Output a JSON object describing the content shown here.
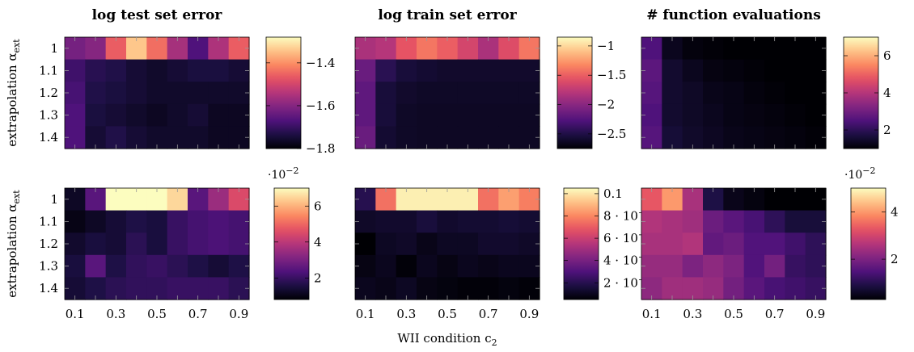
{
  "figure": {
    "xlabel": "WII condition c",
    "xlabel_sub": "2",
    "ylabel": "extrapolation α",
    "ylabel_sub": "ext"
  },
  "colormap": [
    "#000004",
    "#1c1044",
    "#4f127b",
    "#812581",
    "#b5367a",
    "#e55064",
    "#fb8761",
    "#fec287",
    "#fcfdbf"
  ],
  "chart_data": [
    {
      "type": "heatmap",
      "title": "log test set error",
      "x": [
        0.1,
        0.2,
        0.3,
        0.4,
        0.5,
        0.6,
        0.7,
        0.8,
        0.9
      ],
      "x_ticklabels": [
        "0.1",
        "0.3",
        "0.5",
        "0.7",
        "0.9"
      ],
      "y_ticklabels": [
        "1",
        "1.1",
        "1.2",
        "1.3",
        "1.4"
      ],
      "z": [
        [
          -1.62,
          -1.6,
          -1.46,
          -1.34,
          -1.44,
          -1.56,
          -1.67,
          -1.55,
          -1.46
        ],
        [
          -1.69,
          -1.72,
          -1.73,
          -1.75,
          -1.76,
          -1.75,
          -1.74,
          -1.74,
          -1.75
        ],
        [
          -1.68,
          -1.73,
          -1.74,
          -1.75,
          -1.76,
          -1.76,
          -1.76,
          -1.76,
          -1.76
        ],
        [
          -1.67,
          -1.74,
          -1.75,
          -1.76,
          -1.77,
          -1.76,
          -1.75,
          -1.77,
          -1.77
        ],
        [
          -1.67,
          -1.75,
          -1.73,
          -1.75,
          -1.76,
          -1.76,
          -1.76,
          -1.77,
          -1.77
        ]
      ],
      "colorbar": {
        "min": -1.8,
        "max": -1.28,
        "ticks": [
          -1.8,
          -1.6,
          -1.4
        ],
        "ticklabels": [
          "−1.8",
          "−1.6",
          "−1.4"
        ],
        "exponent": ""
      }
    },
    {
      "type": "heatmap",
      "title": "log train set error",
      "x": [
        0.1,
        0.2,
        0.3,
        0.4,
        0.5,
        0.6,
        0.7,
        0.8,
        0.9
      ],
      "x_ticklabels": [
        "0.1",
        "0.3",
        "0.5",
        "0.7",
        "0.9"
      ],
      "y_ticklabels": [
        "1",
        "1.1",
        "1.2",
        "1.3",
        "1.4"
      ],
      "z": [
        [
          -1.85,
          -1.8,
          -1.55,
          -1.4,
          -1.5,
          -1.65,
          -1.85,
          -1.6,
          -1.4
        ],
        [
          -2.15,
          -2.45,
          -2.55,
          -2.58,
          -2.6,
          -2.6,
          -2.6,
          -2.6,
          -2.6
        ],
        [
          -2.2,
          -2.55,
          -2.6,
          -2.62,
          -2.62,
          -2.62,
          -2.62,
          -2.62,
          -2.62
        ],
        [
          -2.2,
          -2.55,
          -2.62,
          -2.63,
          -2.63,
          -2.63,
          -2.63,
          -2.63,
          -2.63
        ],
        [
          -2.15,
          -2.58,
          -2.62,
          -2.63,
          -2.63,
          -2.63,
          -2.63,
          -2.63,
          -2.63
        ]
      ],
      "colorbar": {
        "min": -2.75,
        "max": -0.85,
        "ticks": [
          -2.5,
          -2,
          -1.5,
          -1
        ],
        "ticklabels": [
          "−2.5",
          "−2",
          "−1.5",
          "−1"
        ],
        "exponent": ""
      }
    },
    {
      "type": "heatmap",
      "title": "# function evaluations",
      "x": [
        0.1,
        0.2,
        0.3,
        0.4,
        0.5,
        0.6,
        0.7,
        0.8,
        0.9
      ],
      "x_ticklabels": [
        "0.1",
        "0.3",
        "0.5",
        "0.7",
        "0.9"
      ],
      "y_ticklabels": [
        "1",
        "1.1",
        "1.2",
        "1.3",
        "1.4"
      ],
      "z": [
        [
          2.5,
          1.3,
          1.1,
          1.05,
          1.0,
          1.0,
          1.0,
          1.0,
          1.0
        ],
        [
          2.7,
          1.5,
          1.3,
          1.15,
          1.1,
          1.05,
          1.0,
          1.0,
          1.0
        ],
        [
          2.6,
          1.5,
          1.4,
          1.25,
          1.2,
          1.1,
          1.05,
          1.0,
          1.0
        ],
        [
          2.5,
          1.5,
          1.4,
          1.3,
          1.2,
          1.15,
          1.1,
          1.05,
          1.0
        ],
        [
          2.6,
          1.6,
          1.45,
          1.35,
          1.25,
          1.2,
          1.15,
          1.1,
          1.05
        ]
      ],
      "colorbar": {
        "min": 1.0,
        "max": 7.0,
        "ticks": [
          2,
          4,
          6
        ],
        "ticklabels": [
          "2",
          "4",
          "6"
        ],
        "exponent": ""
      }
    },
    {
      "type": "heatmap",
      "title": "",
      "x": [
        0.1,
        0.2,
        0.3,
        0.4,
        0.5,
        0.6,
        0.7,
        0.8,
        0.9
      ],
      "x_ticklabels": [
        "0.1",
        "0.3",
        "0.5",
        "0.7",
        "0.9"
      ],
      "y_ticklabels": [
        "1",
        "1.1",
        "1.2",
        "1.3",
        "1.4"
      ],
      "z": [
        [
          1.2,
          2.5,
          7.0,
          7.0,
          7.0,
          6.5,
          2.5,
          3.5,
          4.5
        ],
        [
          1.0,
          1.2,
          1.4,
          1.6,
          1.5,
          2.0,
          2.2,
          2.3,
          2.2
        ],
        [
          1.3,
          1.5,
          1.4,
          1.8,
          1.5,
          2.0,
          2.2,
          2.3,
          2.2
        ],
        [
          1.5,
          2.5,
          1.6,
          1.9,
          2.0,
          1.8,
          1.6,
          1.4,
          1.6
        ],
        [
          1.4,
          1.6,
          1.8,
          1.9,
          1.9,
          2.0,
          2.0,
          2.0,
          1.8
        ]
      ],
      "colorbar": {
        "min": 0.8,
        "max": 7.0,
        "ticks": [
          2,
          4,
          6
        ],
        "ticklabels": [
          "2",
          "4",
          "6"
        ],
        "exponent": "·10",
        "exponent_power": "−2"
      }
    },
    {
      "type": "heatmap",
      "title": "",
      "x": [
        0.1,
        0.2,
        0.3,
        0.4,
        0.5,
        0.6,
        0.7,
        0.8,
        0.9
      ],
      "x_ticklabels": [
        "0.1",
        "0.3",
        "0.5",
        "0.7",
        "0.9"
      ],
      "y_ticklabels": [
        "1",
        "1.1",
        "1.2",
        "1.3",
        "1.4"
      ],
      "z": [
        [
          0.02,
          0.075,
          0.102,
          0.102,
          0.102,
          0.102,
          0.075,
          0.085,
          0.078
        ],
        [
          0.012,
          0.013,
          0.013,
          0.016,
          0.013,
          0.014,
          0.014,
          0.015,
          0.014
        ],
        [
          0.004,
          0.011,
          0.012,
          0.009,
          0.011,
          0.011,
          0.013,
          0.013,
          0.012
        ],
        [
          0.008,
          0.01,
          0.006,
          0.01,
          0.008,
          0.01,
          0.009,
          0.01,
          0.01
        ],
        [
          0.01,
          0.009,
          0.011,
          0.008,
          0.007,
          0.006,
          0.006,
          0.007,
          0.006
        ]
      ],
      "colorbar": {
        "min": 0.005,
        "max": 0.105,
        "ticks": [
          0.02,
          0.04,
          0.06,
          0.08,
          0.1
        ],
        "ticklabels": [
          "2 · 10",
          "4 · 10",
          "6 · 10",
          "8 · 10",
          "0.1"
        ],
        "exponent": ""
      }
    },
    {
      "type": "heatmap",
      "title": "",
      "x": [
        0.1,
        0.2,
        0.3,
        0.4,
        0.5,
        0.6,
        0.7,
        0.8,
        0.9
      ],
      "x_ticklabels": [
        "0.1",
        "0.3",
        "0.5",
        "0.7",
        "0.9"
      ],
      "y_ticklabels": [
        "1",
        "1.1",
        "1.2",
        "1.3",
        "1.4"
      ],
      "z": [
        [
          3.3,
          4.0,
          2.5,
          0.9,
          0.5,
          0.4,
          0.3,
          0.3,
          0.3
        ],
        [
          2.6,
          2.5,
          2.4,
          1.8,
          1.6,
          1.4,
          1.1,
          0.8,
          0.8
        ],
        [
          2.5,
          2.5,
          2.6,
          1.7,
          1.8,
          1.5,
          1.5,
          1.3,
          1.1
        ],
        [
          2.3,
          2.3,
          2.0,
          2.2,
          2.0,
          1.5,
          1.9,
          1.2,
          1.1
        ],
        [
          2.2,
          2.4,
          2.4,
          2.3,
          1.9,
          1.6,
          1.4,
          1.3,
          1.2
        ]
      ],
      "colorbar": {
        "min": 0.3,
        "max": 5.0,
        "ticks": [
          2,
          4
        ],
        "ticklabels": [
          "2",
          "4"
        ],
        "exponent": "·10",
        "exponent_power": "−2"
      }
    }
  ]
}
